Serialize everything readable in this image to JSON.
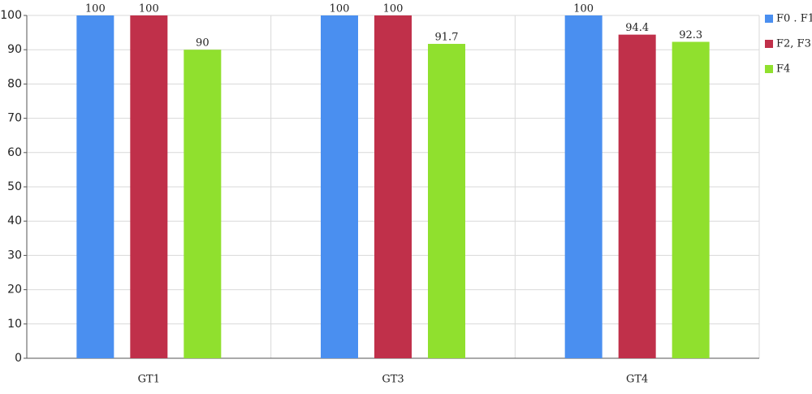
{
  "chart_data": {
    "type": "bar",
    "categories": [
      "GT1",
      "GT3",
      "GT4"
    ],
    "series": [
      {
        "name": "F0 . F1",
        "color": "#4a8ff0",
        "values": [
          100,
          100,
          100
        ]
      },
      {
        "name": "F2, F3",
        "color": "#c0304a",
        "values": [
          100,
          100,
          94.4
        ]
      },
      {
        "name": "F4",
        "color": "#90e02e",
        "values": [
          90,
          91.7,
          92.3
        ]
      }
    ],
    "ylim": [
      0,
      100
    ],
    "yticks": [
      0,
      10,
      20,
      30,
      40,
      50,
      60,
      70,
      80,
      90,
      100
    ],
    "grid": true,
    "legend": "top-right"
  }
}
